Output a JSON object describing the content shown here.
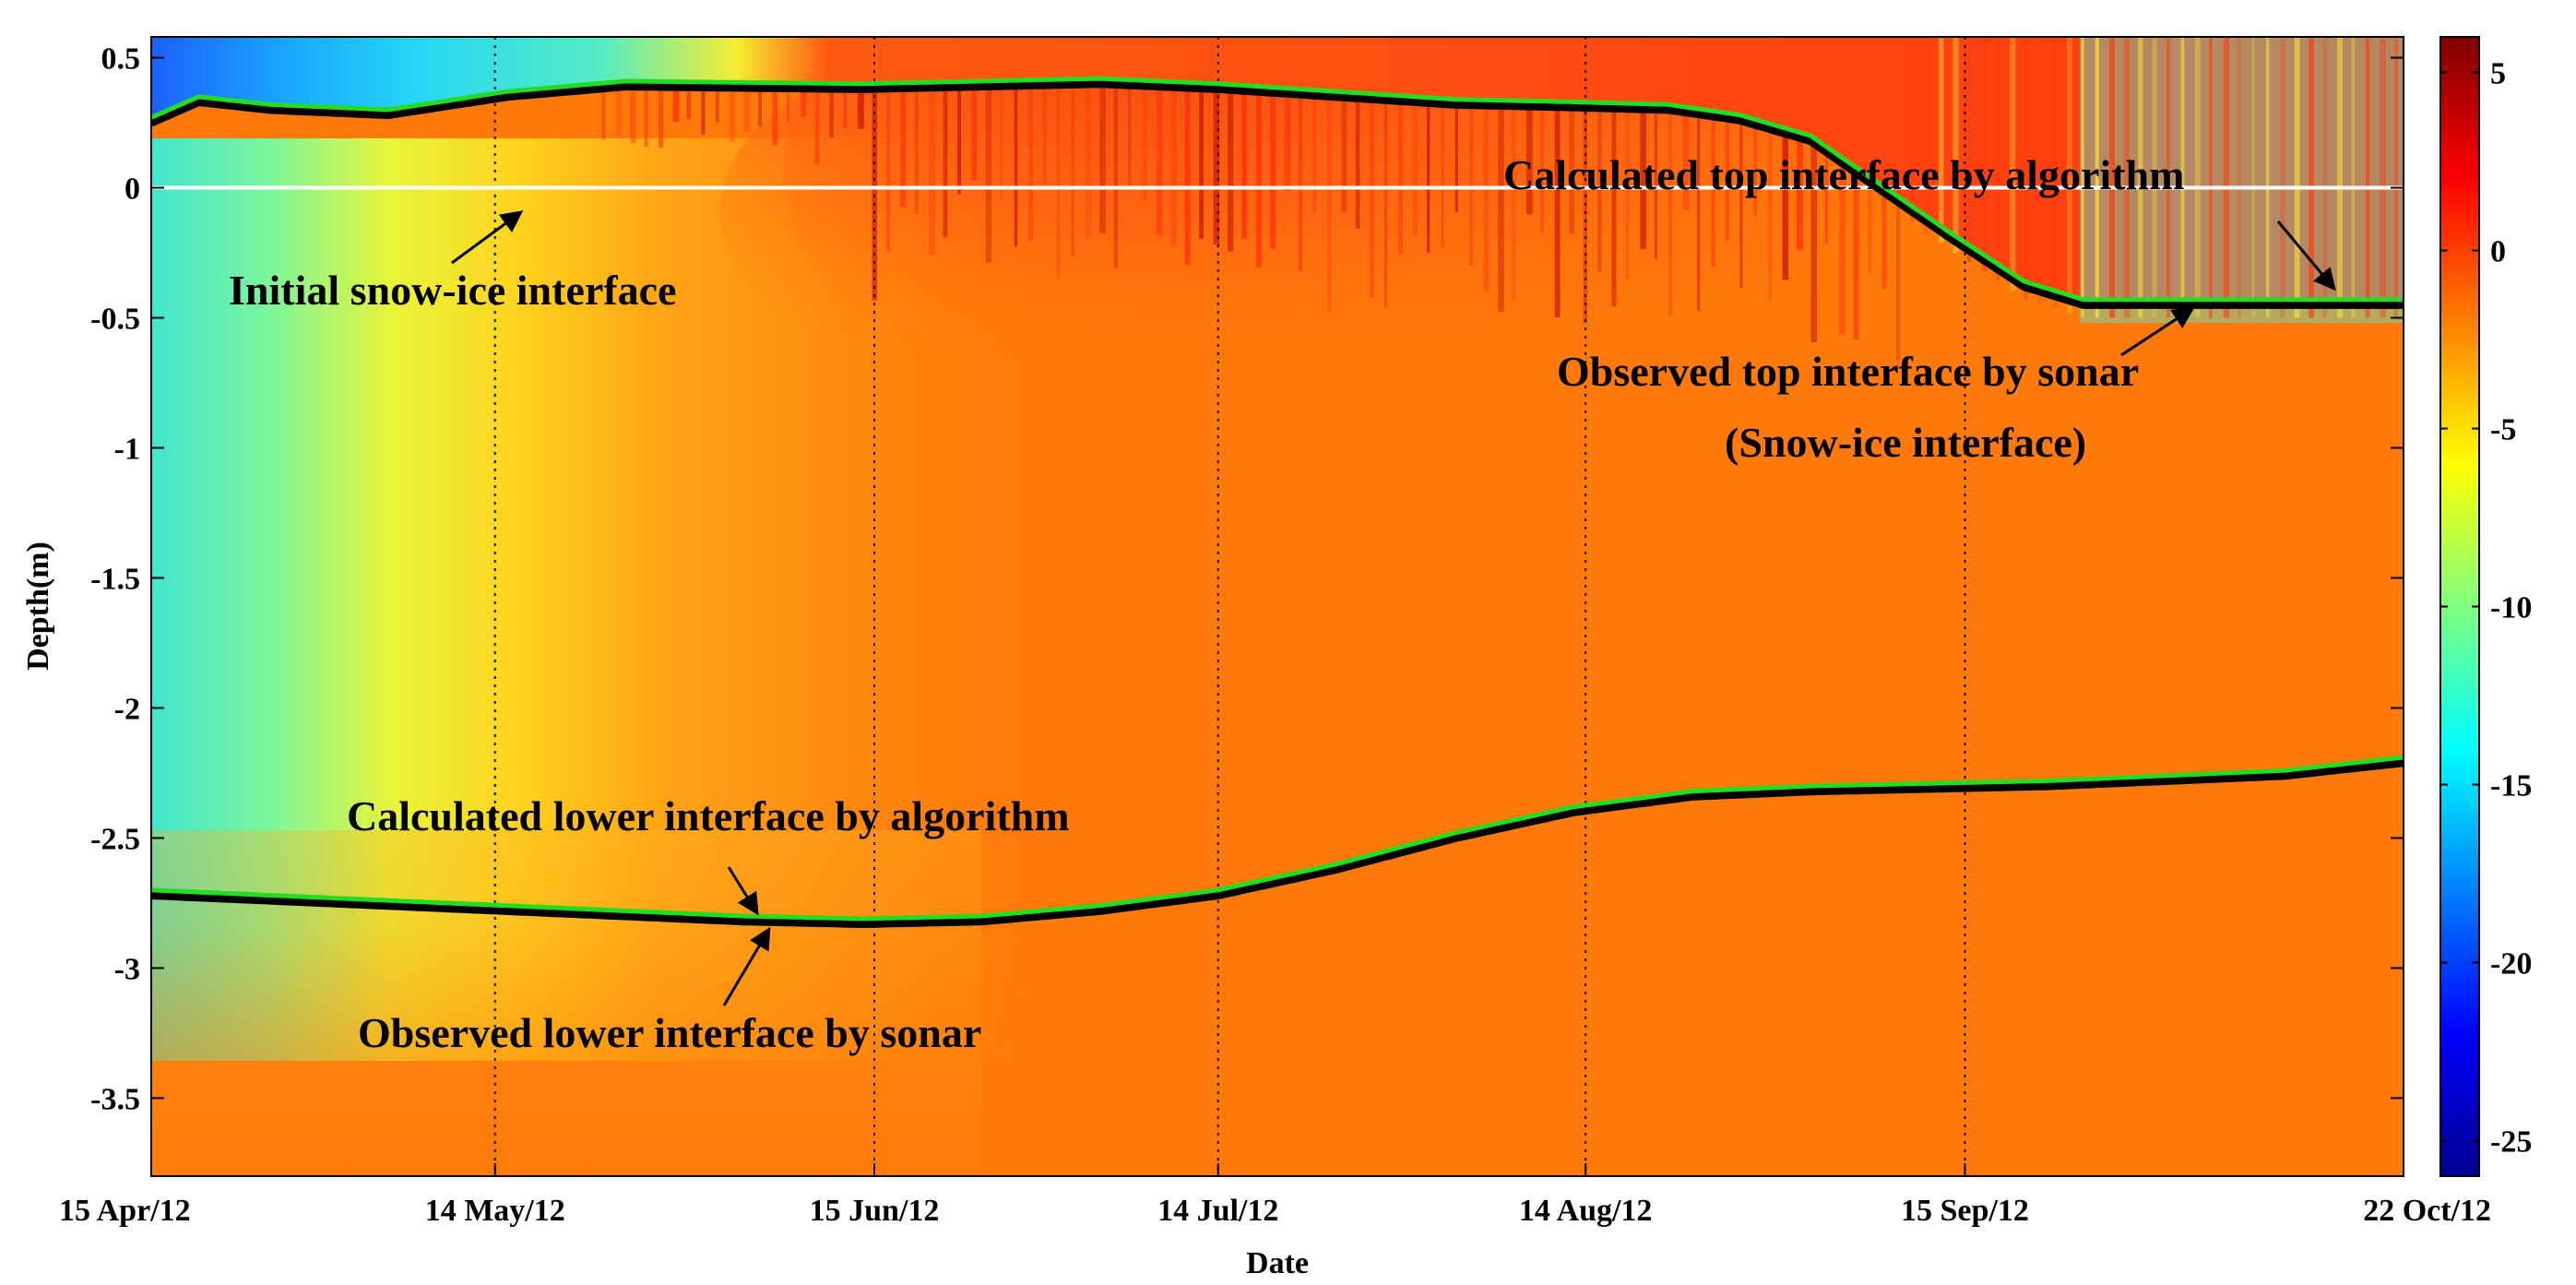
{
  "chart_data": {
    "type": "heatmap",
    "xlabel": "Date",
    "ylabel": "Depth(m)",
    "x_start_day": 0,
    "x_end_day": 190,
    "ylim": [
      -3.8,
      0.58
    ],
    "x_ticks": [
      {
        "day": 0,
        "label": "15 Apr/12"
      },
      {
        "day": 29,
        "label": "14 May/12"
      },
      {
        "day": 61,
        "label": "15 Jun/12"
      },
      {
        "day": 90,
        "label": "14 Jul/12"
      },
      {
        "day": 121,
        "label": "14 Aug/12"
      },
      {
        "day": 153,
        "label": "15 Sep/12"
      },
      {
        "day": 190,
        "label": "22 Oct/12"
      }
    ],
    "y_ticks": [
      0.5,
      0,
      -0.5,
      -1,
      -1.5,
      -2,
      -2.5,
      -3,
      -3.5
    ],
    "y_tick_labels": [
      "0.5",
      "0",
      "-0.5",
      "-1",
      "-1.5",
      "-2",
      "-2.5",
      "-3",
      "-3.5"
    ],
    "colorbar": {
      "range": [
        -26,
        6
      ],
      "ticks": [
        5,
        0,
        -5,
        -10,
        -15,
        -20,
        -25
      ],
      "tick_labels": [
        "5",
        "0",
        "-5",
        "-10",
        "-15",
        "-20",
        "-25"
      ],
      "colormap": [
        "#00008f",
        "#0000ff",
        "#00ffff",
        "#ffff00",
        "#ff7f00",
        "#ff0000",
        "#800000"
      ]
    },
    "initial_interface_depth": 0,
    "series": [
      {
        "name": "Observed top interface by sonar",
        "color": "#000000",
        "x": [
          0,
          4,
          10,
          20,
          30,
          40,
          60,
          80,
          90,
          100,
          110,
          120,
          128,
          134,
          140,
          145,
          152,
          158,
          163,
          170,
          180,
          190
        ],
        "y": [
          0.25,
          0.33,
          0.3,
          0.28,
          0.35,
          0.39,
          0.38,
          0.4,
          0.38,
          0.35,
          0.32,
          0.31,
          0.3,
          0.26,
          0.18,
          0.02,
          -0.2,
          -0.38,
          -0.45,
          -0.45,
          -0.45,
          -0.45
        ]
      },
      {
        "name": "Calculated top interface by algorithm",
        "color": "#22dd22",
        "x": [
          0,
          4,
          10,
          20,
          30,
          40,
          60,
          80,
          90,
          100,
          110,
          120,
          128,
          134,
          140,
          145,
          152,
          158,
          163,
          170,
          180,
          190
        ],
        "y": [
          0.27,
          0.35,
          0.32,
          0.3,
          0.37,
          0.41,
          0.4,
          0.42,
          0.4,
          0.37,
          0.34,
          0.33,
          0.32,
          0.28,
          0.2,
          0.04,
          -0.18,
          -0.36,
          -0.43,
          -0.43,
          -0.43,
          -0.43
        ]
      },
      {
        "name": "Observed lower interface by sonar",
        "color": "#000000",
        "x": [
          0,
          20,
          40,
          50,
          60,
          70,
          80,
          90,
          100,
          110,
          120,
          130,
          140,
          150,
          160,
          170,
          180,
          190
        ],
        "y": [
          -2.72,
          -2.76,
          -2.8,
          -2.82,
          -2.83,
          -2.82,
          -2.78,
          -2.72,
          -2.62,
          -2.5,
          -2.4,
          -2.34,
          -2.32,
          -2.31,
          -2.3,
          -2.28,
          -2.26,
          -2.21
        ]
      },
      {
        "name": "Calculated lower interface by algorithm",
        "color": "#22dd22",
        "x": [
          0,
          20,
          40,
          50,
          60,
          70,
          80,
          90,
          100,
          110,
          120,
          130,
          140,
          150,
          160,
          170,
          180,
          190
        ],
        "y": [
          -2.7,
          -2.74,
          -2.78,
          -2.8,
          -2.81,
          -2.8,
          -2.76,
          -2.7,
          -2.6,
          -2.48,
          -2.38,
          -2.32,
          -2.3,
          -2.29,
          -2.28,
          -2.26,
          -2.24,
          -2.19
        ]
      }
    ],
    "annotations": [
      {
        "text": "Initial snow-ice interface",
        "arrow_to_day": 31,
        "arrow_to_y": -0.1
      },
      {
        "text": "Calculated  top interface by algorithm",
        "arrow_to_day": 184,
        "arrow_to_y": -0.38
      },
      {
        "text": "Observed  top interface by sonar",
        "arrow_to_day": 172,
        "arrow_to_y": -0.47
      },
      {
        "text": "(Snow-ice interface)"
      },
      {
        "text": "Calculated  lower interface by algorithm",
        "arrow_to_day": 51,
        "arrow_to_y": -2.78
      },
      {
        "text": "Observed  lower interface by sonar",
        "arrow_to_day": 52,
        "arrow_to_y": -2.86
      }
    ]
  }
}
